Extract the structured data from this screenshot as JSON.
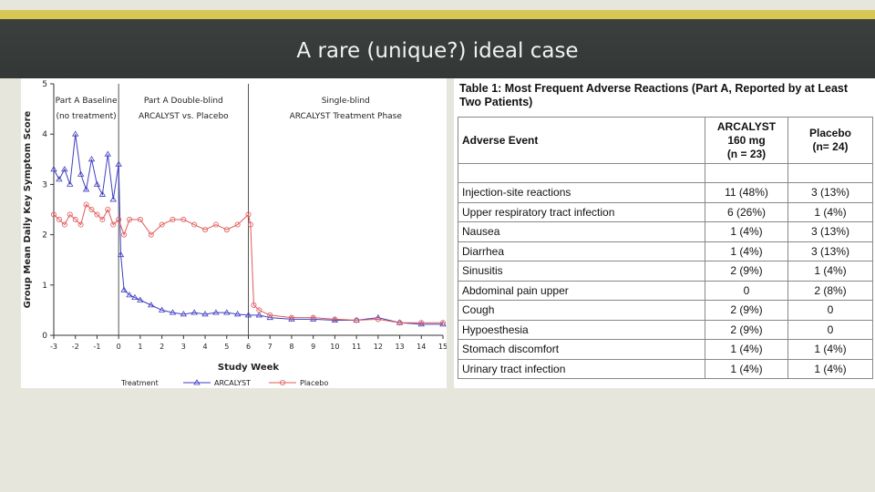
{
  "slide": {
    "title": "A rare (unique?) ideal case"
  },
  "colors": {
    "gold": "#d9c755",
    "title_bar": "#363a38",
    "background": "#e6e6dd",
    "arcalyst": "#3f3fc0",
    "placebo": "#e05a5a"
  },
  "chart_data": {
    "type": "line",
    "title": "",
    "xlabel": "Study Week",
    "ylabel": "Group Mean Daily Key Symptom Score",
    "xlim": [
      -3,
      15
    ],
    "ylim": [
      0,
      5
    ],
    "xticks": [
      "-3",
      "-2",
      "-1",
      "0",
      "1",
      "2",
      "3",
      "4",
      "5",
      "6",
      "7",
      "8",
      "9",
      "10",
      "11",
      "12",
      "13",
      "14",
      "15"
    ],
    "yticks": [
      "0",
      "1",
      "2",
      "3",
      "4",
      "5"
    ],
    "phase_dividers": [
      0,
      6
    ],
    "phase_labels": [
      {
        "line1": "Part A Baseline",
        "line2": "(no treatment)"
      },
      {
        "line1": "Part A Double-blind",
        "line2": "ARCALYST vs. Placebo"
      },
      {
        "line1": "Single-blind",
        "line2": "ARCALYST Treatment Phase"
      }
    ],
    "legend": {
      "title": "Treatment",
      "position": "bottom"
    },
    "grid": false,
    "series": [
      {
        "name": "ARCALYST",
        "marker": "triangle",
        "x": [
          -3,
          -2.75,
          -2.5,
          -2.25,
          -2,
          -1.75,
          -1.5,
          -1.25,
          -1,
          -0.75,
          -0.5,
          -0.25,
          0,
          0.1,
          0.25,
          0.5,
          0.75,
          1,
          1.5,
          2,
          2.5,
          3,
          3.5,
          4,
          4.5,
          5,
          5.5,
          6,
          6.5,
          7,
          8,
          9,
          10,
          11,
          12,
          13,
          14,
          15
        ],
        "y": [
          3.3,
          3.1,
          3.3,
          3.0,
          4.0,
          3.2,
          2.9,
          3.5,
          3.0,
          2.8,
          3.6,
          2.7,
          3.4,
          1.6,
          0.9,
          0.8,
          0.75,
          0.7,
          0.6,
          0.5,
          0.45,
          0.42,
          0.45,
          0.42,
          0.45,
          0.45,
          0.42,
          0.4,
          0.4,
          0.35,
          0.32,
          0.32,
          0.3,
          0.3,
          0.35,
          0.25,
          0.22,
          0.22
        ]
      },
      {
        "name": "Placebo",
        "marker": "circle",
        "x": [
          -3,
          -2.75,
          -2.5,
          -2.25,
          -2,
          -1.75,
          -1.5,
          -1.25,
          -1,
          -0.75,
          -0.5,
          -0.25,
          0,
          0.25,
          0.5,
          1,
          1.5,
          2,
          2.5,
          3,
          3.5,
          4,
          4.5,
          5,
          5.5,
          6,
          6.1,
          6.25,
          6.5,
          7,
          8,
          9,
          10,
          11,
          12,
          13,
          14,
          15
        ],
        "y": [
          2.4,
          2.3,
          2.2,
          2.4,
          2.3,
          2.2,
          2.6,
          2.5,
          2.4,
          2.3,
          2.5,
          2.2,
          2.3,
          2.0,
          2.3,
          2.3,
          2.0,
          2.2,
          2.3,
          2.3,
          2.2,
          2.1,
          2.2,
          2.1,
          2.2,
          2.4,
          2.2,
          0.6,
          0.5,
          0.4,
          0.35,
          0.35,
          0.32,
          0.3,
          0.32,
          0.25,
          0.25,
          0.25
        ]
      }
    ]
  },
  "table": {
    "title": "Table 1: Most Frequent Adverse Reactions (Part A, Reported by at Least Two Patients)",
    "headers": {
      "event": "Adverse Event",
      "arcalyst_1": "ARCALYST",
      "arcalyst_2": "160 mg",
      "arcalyst_3": "(n = 23)",
      "placebo_1": "Placebo",
      "placebo_2": "(n= 24)"
    },
    "rows": [
      {
        "event": "Injection-site reactions",
        "arcalyst": "11 (48%)",
        "placebo": "3 (13%)"
      },
      {
        "event": "Upper respiratory tract infection",
        "arcalyst": "6 (26%)",
        "placebo": "1 (4%)"
      },
      {
        "event": "Nausea",
        "arcalyst": "1 (4%)",
        "placebo": "3 (13%)"
      },
      {
        "event": "Diarrhea",
        "arcalyst": "1 (4%)",
        "placebo": "3 (13%)"
      },
      {
        "event": "Sinusitis",
        "arcalyst": "2 (9%)",
        "placebo": "1 (4%)"
      },
      {
        "event": "Abdominal pain upper",
        "arcalyst": "0",
        "placebo": "2 (8%)"
      },
      {
        "event": "Cough",
        "arcalyst": "2 (9%)",
        "placebo": "0"
      },
      {
        "event": "Hypoesthesia",
        "arcalyst": "2 (9%)",
        "placebo": "0"
      },
      {
        "event": "Stomach discomfort",
        "arcalyst": "1 (4%)",
        "placebo": "1 (4%)"
      },
      {
        "event": "Urinary tract infection",
        "arcalyst": "1 (4%)",
        "placebo": "1 (4%)"
      }
    ]
  }
}
